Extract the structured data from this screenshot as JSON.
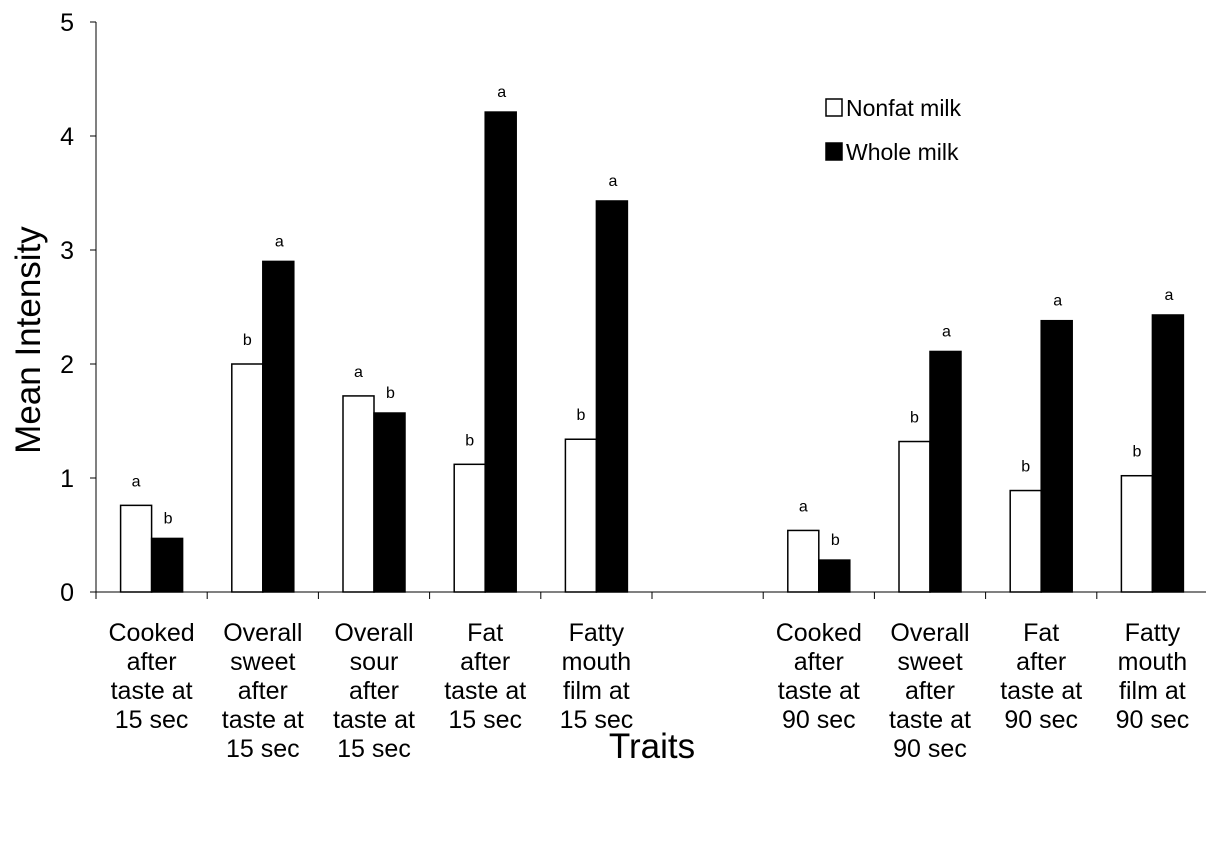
{
  "chart_data": {
    "type": "bar",
    "title": "",
    "xlabel": "Traits",
    "ylabel": "Mean Intensity",
    "ylim": [
      0,
      5
    ],
    "yticks": [
      0,
      1,
      2,
      3,
      4,
      5
    ],
    "grid": false,
    "legend_position": "top-right",
    "categories": [
      [
        "Cooked",
        "after",
        "taste at",
        "15 sec"
      ],
      [
        "Overall",
        "sweet",
        "after",
        "taste at",
        "15 sec"
      ],
      [
        "Overall",
        "sour",
        "after",
        "taste at",
        "15 sec"
      ],
      [
        "Fat",
        "after",
        "taste at",
        "15 sec"
      ],
      [
        "Fatty",
        "mouth",
        "film at",
        "15 sec"
      ],
      [],
      [
        "Cooked",
        "after",
        "taste at",
        "90 sec"
      ],
      [
        "Overall",
        "sweet",
        "after",
        "taste at",
        "90 sec"
      ],
      [
        "Fat",
        "after",
        "taste at",
        "90 sec"
      ],
      [
        "Fatty",
        "mouth",
        "film at",
        "90 sec"
      ]
    ],
    "series": [
      {
        "name": "Nonfat milk",
        "fill": "#ffffff",
        "values": [
          0.76,
          2.0,
          1.72,
          1.12,
          1.34,
          null,
          0.54,
          1.32,
          0.89,
          1.02
        ],
        "labels": [
          "a",
          "b",
          "a",
          "b",
          "b",
          "",
          "a",
          "b",
          "b",
          "b"
        ]
      },
      {
        "name": "Whole milk",
        "fill": "#000000",
        "values": [
          0.47,
          2.9,
          1.57,
          4.21,
          3.43,
          null,
          0.28,
          2.11,
          2.38,
          2.43
        ],
        "labels": [
          "b",
          "a",
          "b",
          "a",
          "a",
          "",
          "b",
          "a",
          "a",
          "a"
        ]
      }
    ]
  }
}
